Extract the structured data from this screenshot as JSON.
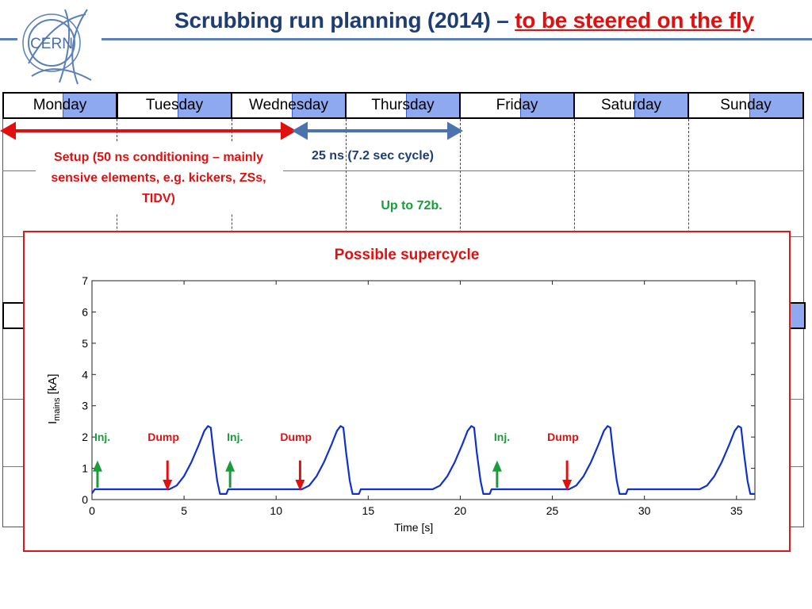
{
  "header": {
    "logo_text": "CERN",
    "title_main": "Scrubbing run planning (2014) –",
    "title_emphasis": "to be steered on the fly"
  },
  "week": {
    "days": [
      "Monday",
      "Tuesday",
      "Wednesday",
      "Thursday",
      "Friday",
      "Saturday",
      "Sunday"
    ],
    "accent_color": "#8ea9f0"
  },
  "annotations": {
    "setup_text": "Setup (50 ns conditioning – mainly sensive elements, e.g. kickers, ZSs, TIDV)",
    "cycle_text": "25 ns (7.2 sec cycle)",
    "bunches_text": "Up to 72b.",
    "setup_color": "#e01010",
    "cycle_color": "#1f3d73",
    "bunches_color": "#1a9c3a"
  },
  "supercycle": {
    "title": "Possible supercycle",
    "inj_label": "Inj.",
    "dump_label": "Dump",
    "inj_times": [
      0.3,
      7.5,
      22.0
    ],
    "dump_times": [
      4.1,
      11.3,
      25.8
    ],
    "chart_data": {
      "type": "line",
      "xlabel": "Time [s]",
      "ylabel_main": "I",
      "ylabel_sub": "mains",
      "ylabel_unit": "[kA]",
      "xlim": [
        0,
        36
      ],
      "ylim": [
        0,
        7
      ],
      "x_ticks": [
        0,
        5,
        10,
        15,
        20,
        25,
        30,
        35
      ],
      "y_ticks": [
        0,
        1,
        2,
        3,
        4,
        5,
        6,
        7
      ],
      "grid": false,
      "series": [
        {
          "color": "#1030d0",
          "x": [
            0,
            0.15,
            0.3,
            4.2,
            4.6,
            5.0,
            5.4,
            5.8,
            6.1,
            6.3,
            6.45,
            6.6,
            6.8,
            6.95,
            7.0,
            7.3,
            7.4,
            11.4,
            11.8,
            12.2,
            12.6,
            13.0,
            13.3,
            13.5,
            13.65,
            13.8,
            14.0,
            14.15,
            14.2,
            14.5,
            14.6,
            18.5,
            18.9,
            19.3,
            19.7,
            20.1,
            20.4,
            20.6,
            20.75,
            20.9,
            21.1,
            21.25,
            21.3,
            21.6,
            21.7,
            25.9,
            26.3,
            26.7,
            27.1,
            27.5,
            27.8,
            28.0,
            28.15,
            28.3,
            28.5,
            28.65,
            28.7,
            29.0,
            29.1,
            33.0,
            33.4,
            33.8,
            34.2,
            34.6,
            34.9,
            35.1,
            35.25,
            35.4,
            35.6,
            35.75,
            35.8,
            36.0
          ],
          "y": [
            0.2,
            0.33,
            0.33,
            0.33,
            0.45,
            0.75,
            1.2,
            1.75,
            2.2,
            2.35,
            2.3,
            1.5,
            0.6,
            0.18,
            0.18,
            0.18,
            0.33,
            0.33,
            0.45,
            0.75,
            1.2,
            1.75,
            2.2,
            2.35,
            2.3,
            1.5,
            0.6,
            0.18,
            0.18,
            0.18,
            0.33,
            0.33,
            0.45,
            0.75,
            1.2,
            1.75,
            2.2,
            2.35,
            2.3,
            1.5,
            0.6,
            0.18,
            0.18,
            0.18,
            0.33,
            0.33,
            0.45,
            0.75,
            1.2,
            1.75,
            2.2,
            2.35,
            2.3,
            1.5,
            0.6,
            0.18,
            0.18,
            0.18,
            0.33,
            0.33,
            0.45,
            0.75,
            1.2,
            1.75,
            2.2,
            2.35,
            2.3,
            1.5,
            0.6,
            0.18,
            0.18,
            0.18
          ]
        }
      ]
    }
  }
}
